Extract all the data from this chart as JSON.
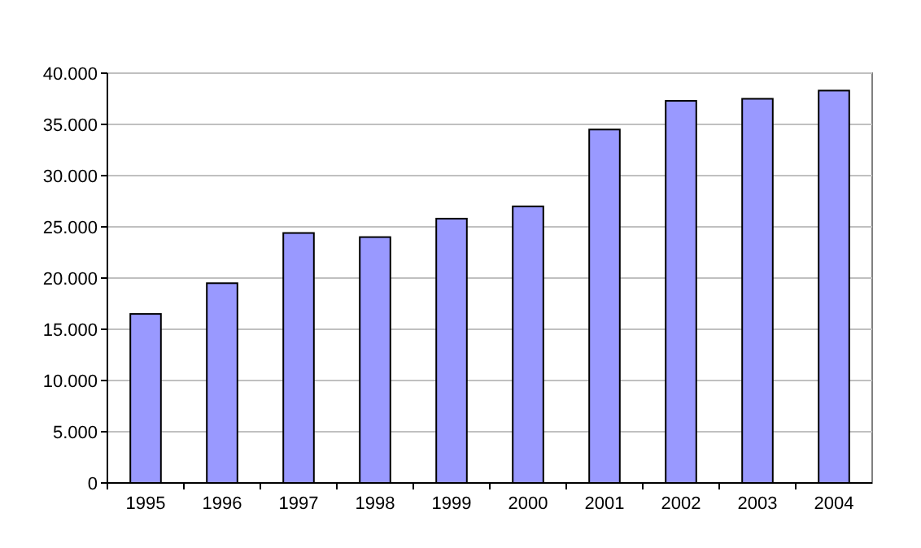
{
  "chart_data": {
    "type": "bar",
    "categories": [
      "1995",
      "1996",
      "1997",
      "1998",
      "1999",
      "2000",
      "2001",
      "2002",
      "2003",
      "2004"
    ],
    "values": [
      16500,
      19500,
      24400,
      24000,
      25800,
      27000,
      34500,
      37300,
      37500,
      38300
    ],
    "color": "#9999ff",
    "ylim": [
      0,
      40000
    ],
    "yticks": [
      0,
      {
        "value": 5000,
        "label": "5.000"
      },
      {
        "value": 10000,
        "label": "10.000"
      },
      {
        "value": 15000,
        "label": "15.000"
      },
      {
        "value": 20000,
        "label": "20.000"
      },
      {
        "value": 25000,
        "label": "25.000"
      },
      {
        "value": 30000,
        "label": "30.000"
      },
      {
        "value": 35000,
        "label": "35.000"
      },
      {
        "value": 40000,
        "label": "40.000"
      }
    ],
    "grid": "y"
  }
}
